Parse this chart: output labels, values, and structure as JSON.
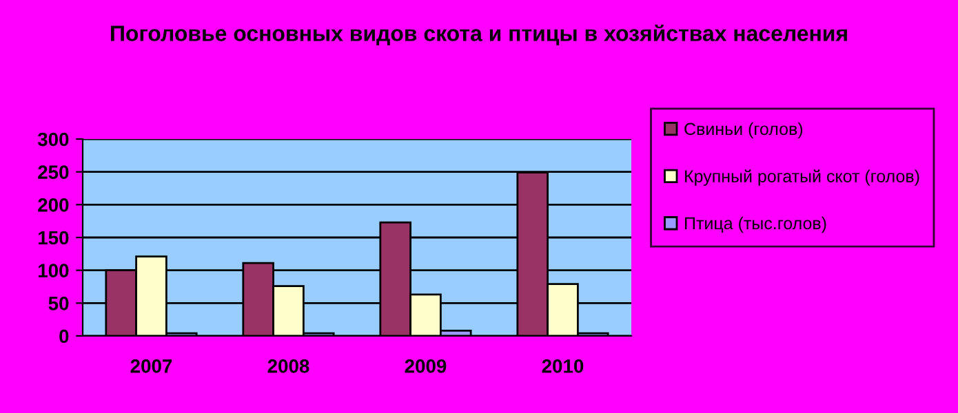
{
  "chart_data": {
    "type": "bar",
    "title": "Поголовье основных видов скота и птицы в хозяйствах населения",
    "categories": [
      "2007",
      "2008",
      "2009",
      "2010"
    ],
    "series": [
      {
        "name": "Свиньи (голов)",
        "color": "#993366",
        "values": [
          100,
          111,
          173,
          249
        ]
      },
      {
        "name": "Крупный рогатый скот (голов)",
        "color": "#ffffcc",
        "values": [
          121,
          76,
          63,
          79
        ]
      },
      {
        "name": "Птица (тыс.голов)",
        "color": "#9999ff",
        "values": [
          4,
          4,
          8,
          4
        ]
      }
    ],
    "ylim": [
      0,
      300
    ],
    "yticks": [
      0,
      50,
      100,
      150,
      200,
      250,
      300
    ],
    "grid": "y",
    "legend": "right"
  }
}
